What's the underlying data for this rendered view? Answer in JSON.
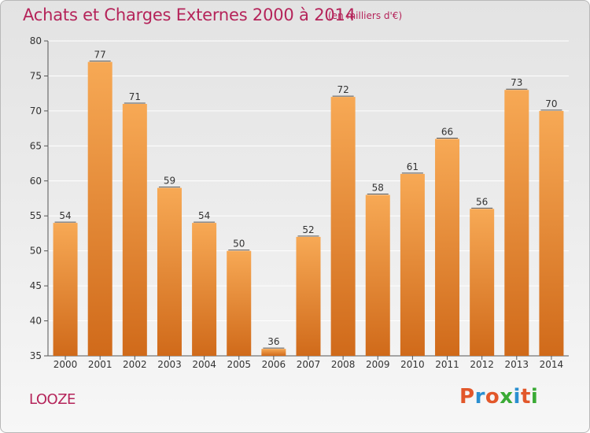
{
  "chart_data": {
    "type": "bar",
    "title": "Achats et Charges Externes 2000 à 2014",
    "subtitle": "(en milliers d'€)",
    "categories": [
      "2000",
      "2001",
      "2002",
      "2003",
      "2004",
      "2005",
      "2006",
      "2007",
      "2008",
      "2009",
      "2010",
      "2011",
      "2012",
      "2013",
      "2014"
    ],
    "values": [
      54,
      77,
      71,
      59,
      54,
      50,
      36,
      52,
      72,
      58,
      61,
      66,
      56,
      73,
      70
    ],
    "ylim": [
      35,
      80
    ],
    "yticks": [
      35,
      40,
      45,
      50,
      55,
      60,
      65,
      70,
      75,
      80
    ],
    "grid": true,
    "bar_color": "#e8822e",
    "bar_color_light": "#f7a955",
    "bar_color_dark": "#d06a1a"
  },
  "footer": {
    "commune": "LOOZE",
    "logo_text": "Proxiti"
  },
  "colors": {
    "title": "#b5245a",
    "logo_letters": [
      "#e2572a",
      "#2a8fd0",
      "#e2572a",
      "#3aaa35",
      "#2a8fd0",
      "#e2572a",
      "#3aaa35"
    ]
  }
}
